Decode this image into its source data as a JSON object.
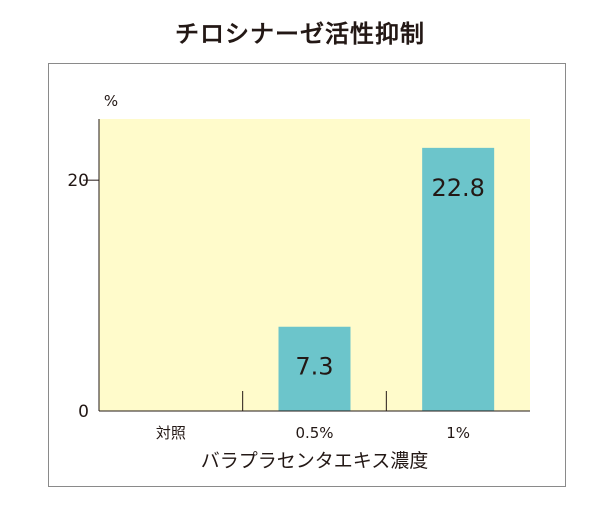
{
  "chart_data": {
    "type": "bar",
    "title": "チロシナーゼ活性抑制",
    "xlabel": "バラプラセンタエキス濃度",
    "ylabel": "%",
    "categories": [
      "対照",
      "0.5%",
      "1%"
    ],
    "values": [
      0,
      7.3,
      22.8
    ],
    "data_labels": [
      "",
      "7.3",
      "22.8"
    ],
    "ylim": [
      0,
      25.3
    ],
    "yticks": [
      0,
      20
    ],
    "ytick_labels": [
      "0",
      "20"
    ],
    "grid": false,
    "legend": "none",
    "colors": {
      "plot_background": "#FFFBCB",
      "bar": "#6CC5CB",
      "axis": "#231815",
      "frame": "#8A8A8A"
    }
  }
}
